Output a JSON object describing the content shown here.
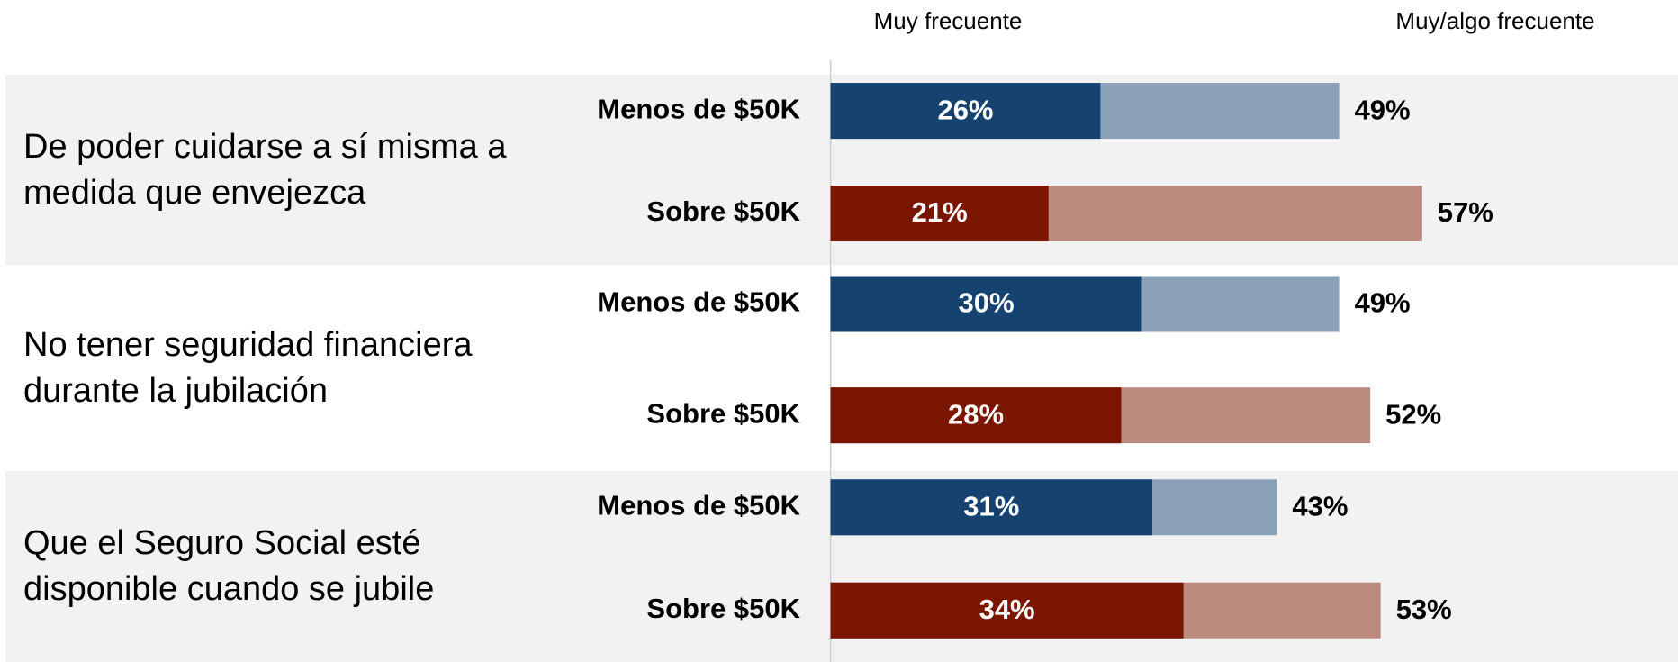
{
  "chart_data": {
    "type": "bar",
    "orientation": "horizontal",
    "series": [
      {
        "name": "Muy frecuente"
      },
      {
        "name": "Muy/algo frecuente"
      }
    ],
    "xlim": [
      0,
      80
    ],
    "groups": [
      {
        "label": "De poder cuidarse a sí misma a medida que envejezca",
        "rows": [
          {
            "category": "Menos de $50K",
            "values": [
              26,
              49
            ],
            "value_labels": [
              "26%",
              "49%"
            ],
            "colors": [
              "#15426f",
              "#8aa1b8"
            ]
          },
          {
            "category": "Sobre $50K",
            "values": [
              21,
              57
            ],
            "value_labels": [
              "21%",
              "57%"
            ],
            "colors": [
              "#7a1500",
              "#bd8a80"
            ]
          }
        ]
      },
      {
        "label": "No tener seguridad financiera durante la jubilación",
        "rows": [
          {
            "category": "Menos de $50K",
            "values": [
              30,
              49
            ],
            "value_labels": [
              "30%",
              "49%"
            ],
            "colors": [
              "#15426f",
              "#8aa1b8"
            ]
          },
          {
            "category": "Sobre $50K",
            "values": [
              28,
              52
            ],
            "value_labels": [
              "28%",
              "52%"
            ],
            "colors": [
              "#7a1500",
              "#bd8a80"
            ]
          }
        ]
      },
      {
        "label": "Que el Seguro Social esté disponible cuando se jubile",
        "rows": [
          {
            "category": "Menos de $50K",
            "values": [
              31,
              43
            ],
            "value_labels": [
              "31%",
              "43%"
            ],
            "colors": [
              "#15426f",
              "#8aa1b8"
            ]
          },
          {
            "category": "Sobre $50K",
            "values": [
              34,
              53
            ],
            "value_labels": [
              "34%",
              "53%"
            ],
            "colors": [
              "#7a1500",
              "#bd8a80"
            ]
          }
        ]
      }
    ]
  }
}
